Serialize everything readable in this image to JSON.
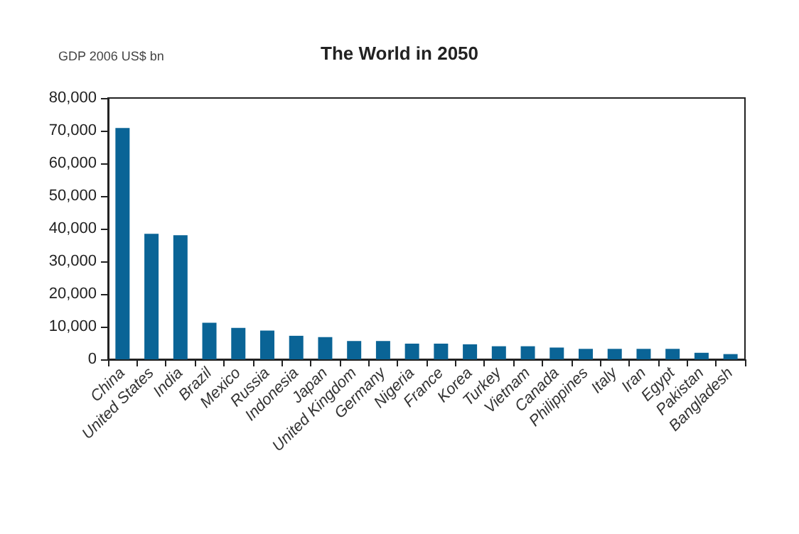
{
  "chart_data": {
    "type": "bar",
    "title": "The World in 2050",
    "ylabel": "GDP 2006 US$ bn",
    "categories": [
      "China",
      "United States",
      "India",
      "Brazil",
      "Mexico",
      "Russia",
      "Indonesia",
      "Japan",
      "United Kingdom",
      "Germany",
      "Nigeria",
      "France",
      "Korea",
      "Turkey",
      "Vietnam",
      "Canada",
      "Philippines",
      "Italy",
      "Iran",
      "Egypt",
      "Pakistan",
      "Bangladesh"
    ],
    "values": [
      70800,
      38400,
      38000,
      11200,
      9600,
      8800,
      7200,
      6800,
      5600,
      5600,
      4800,
      4800,
      4600,
      4000,
      4000,
      3600,
      3200,
      3200,
      3200,
      3200,
      2000,
      1600
    ],
    "color": "#0a6496",
    "ylim": [
      0,
      80000
    ],
    "yticks": [
      0,
      {
        "value": 10000,
        "label": "10,000"
      },
      {
        "value": 20000,
        "label": "20,000"
      },
      {
        "value": 30000,
        "label": "30,000"
      },
      {
        "value": 40000,
        "label": "40,000"
      },
      {
        "value": 50000,
        "label": "50,000"
      },
      {
        "value": 60000,
        "label": "60,000"
      },
      {
        "value": 70000,
        "label": "70,000"
      },
      {
        "value": 80000,
        "label": "80,000"
      }
    ],
    "grid": false
  }
}
